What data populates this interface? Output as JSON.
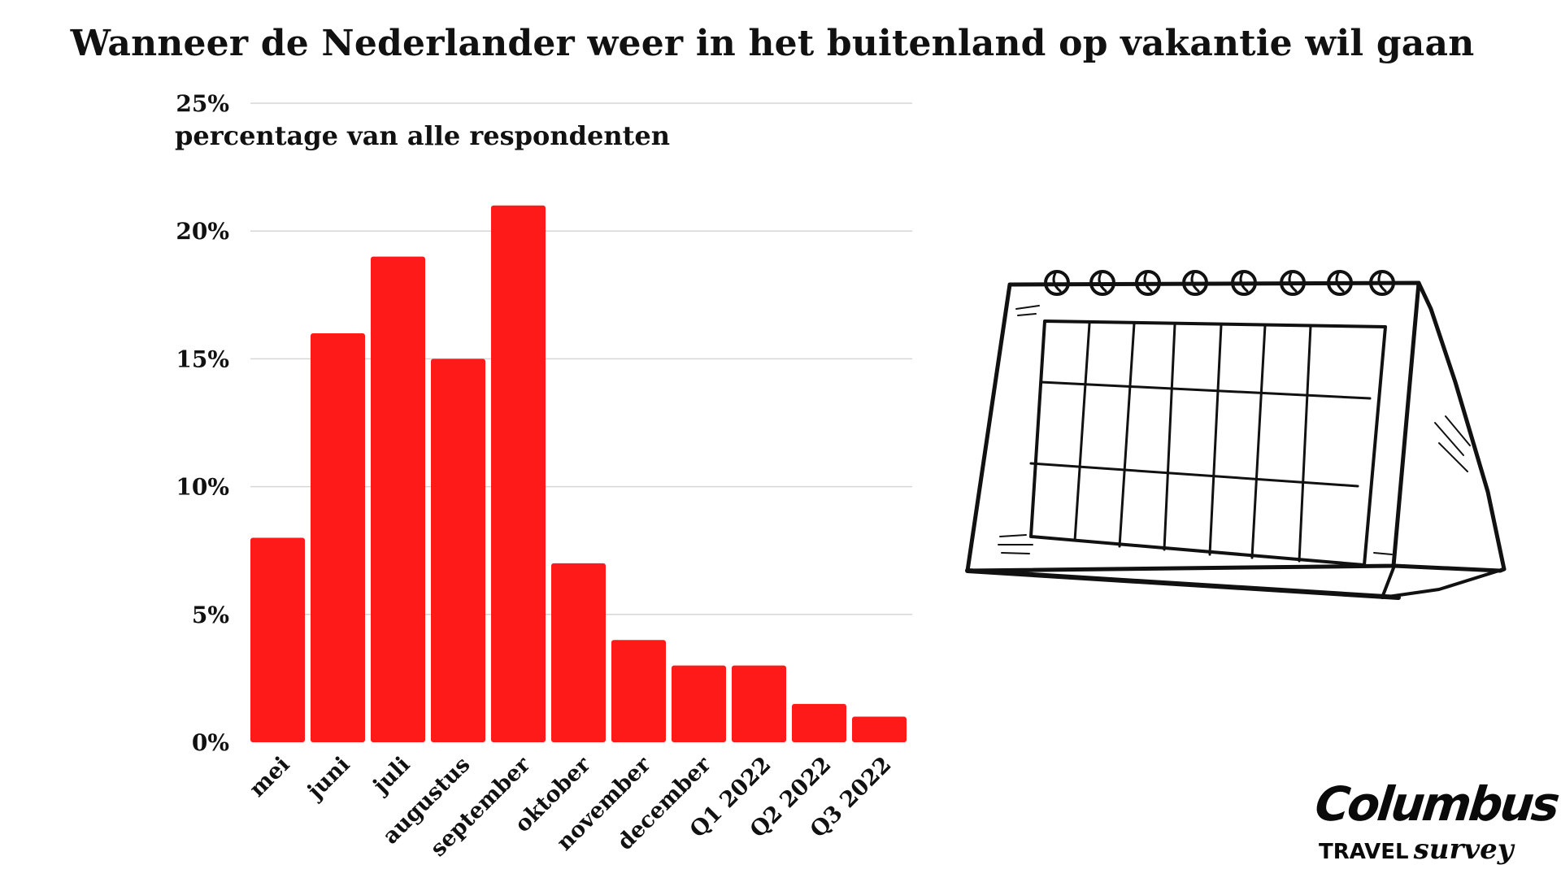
{
  "title": "Wanneer de Nederlander weer in het buitenland op vakantie wil gaan",
  "brand": {
    "name": "Columbus",
    "sub_caps": "TRAVEL",
    "sub_script": "survey"
  },
  "illustration": {
    "icon": "desk-calendar-icon"
  },
  "chart_data": {
    "type": "bar",
    "ylabel": "percentage van alle respondenten",
    "ylim": [
      0,
      25
    ],
    "yticks": [
      0,
      5,
      10,
      15,
      20,
      25
    ],
    "ytick_labels": [
      "0%",
      "5%",
      "10%",
      "15%",
      "20%",
      "25%"
    ],
    "grid": true,
    "bar_color": "#ff1a1a",
    "categories": [
      "mei",
      "juni",
      "juli",
      "augustus",
      "september",
      "oktober",
      "november",
      "december",
      "Q1 2022",
      "Q2 2022",
      "Q3 2022"
    ],
    "values": [
      8,
      16,
      19,
      15,
      21,
      7,
      4,
      3,
      3,
      1.5,
      1
    ]
  }
}
